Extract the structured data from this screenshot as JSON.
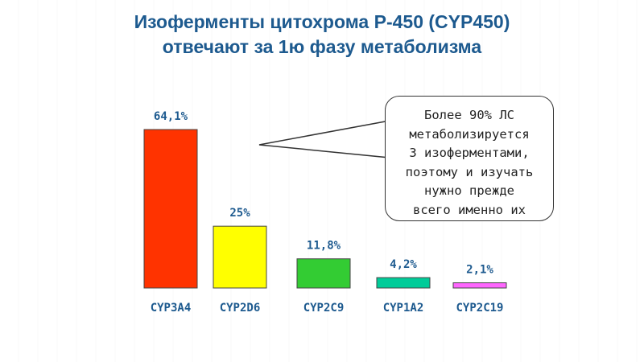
{
  "title": {
    "line1": "Изоферменты цитохрома Р-450 (CYP450)",
    "line2": "отвечают за 1ю фазу метаболизма"
  },
  "callout": {
    "lines": [
      "Более 90% ЛС",
      "метаболизируется",
      "3 изоферментами,",
      "поэтому и изучать",
      "нужно прежде",
      "всего именно их"
    ]
  },
  "chart_data": {
    "type": "bar",
    "categories": [
      "CYP3A4",
      "CYP2D6",
      "CYP2C9",
      "CYP1A2",
      "CYP2C19"
    ],
    "values": [
      64.1,
      25,
      11.8,
      4.2,
      2.1
    ],
    "value_labels": [
      "64,1%",
      "25%",
      "11,8%",
      "4,2%",
      "2,1%"
    ],
    "colors": [
      "#ff3300",
      "#ffff00",
      "#33cc33",
      "#00cc99",
      "#ff66ff"
    ],
    "label_color": "#1d5a8f",
    "grid": false,
    "ylim": [
      0,
      64.1
    ]
  }
}
